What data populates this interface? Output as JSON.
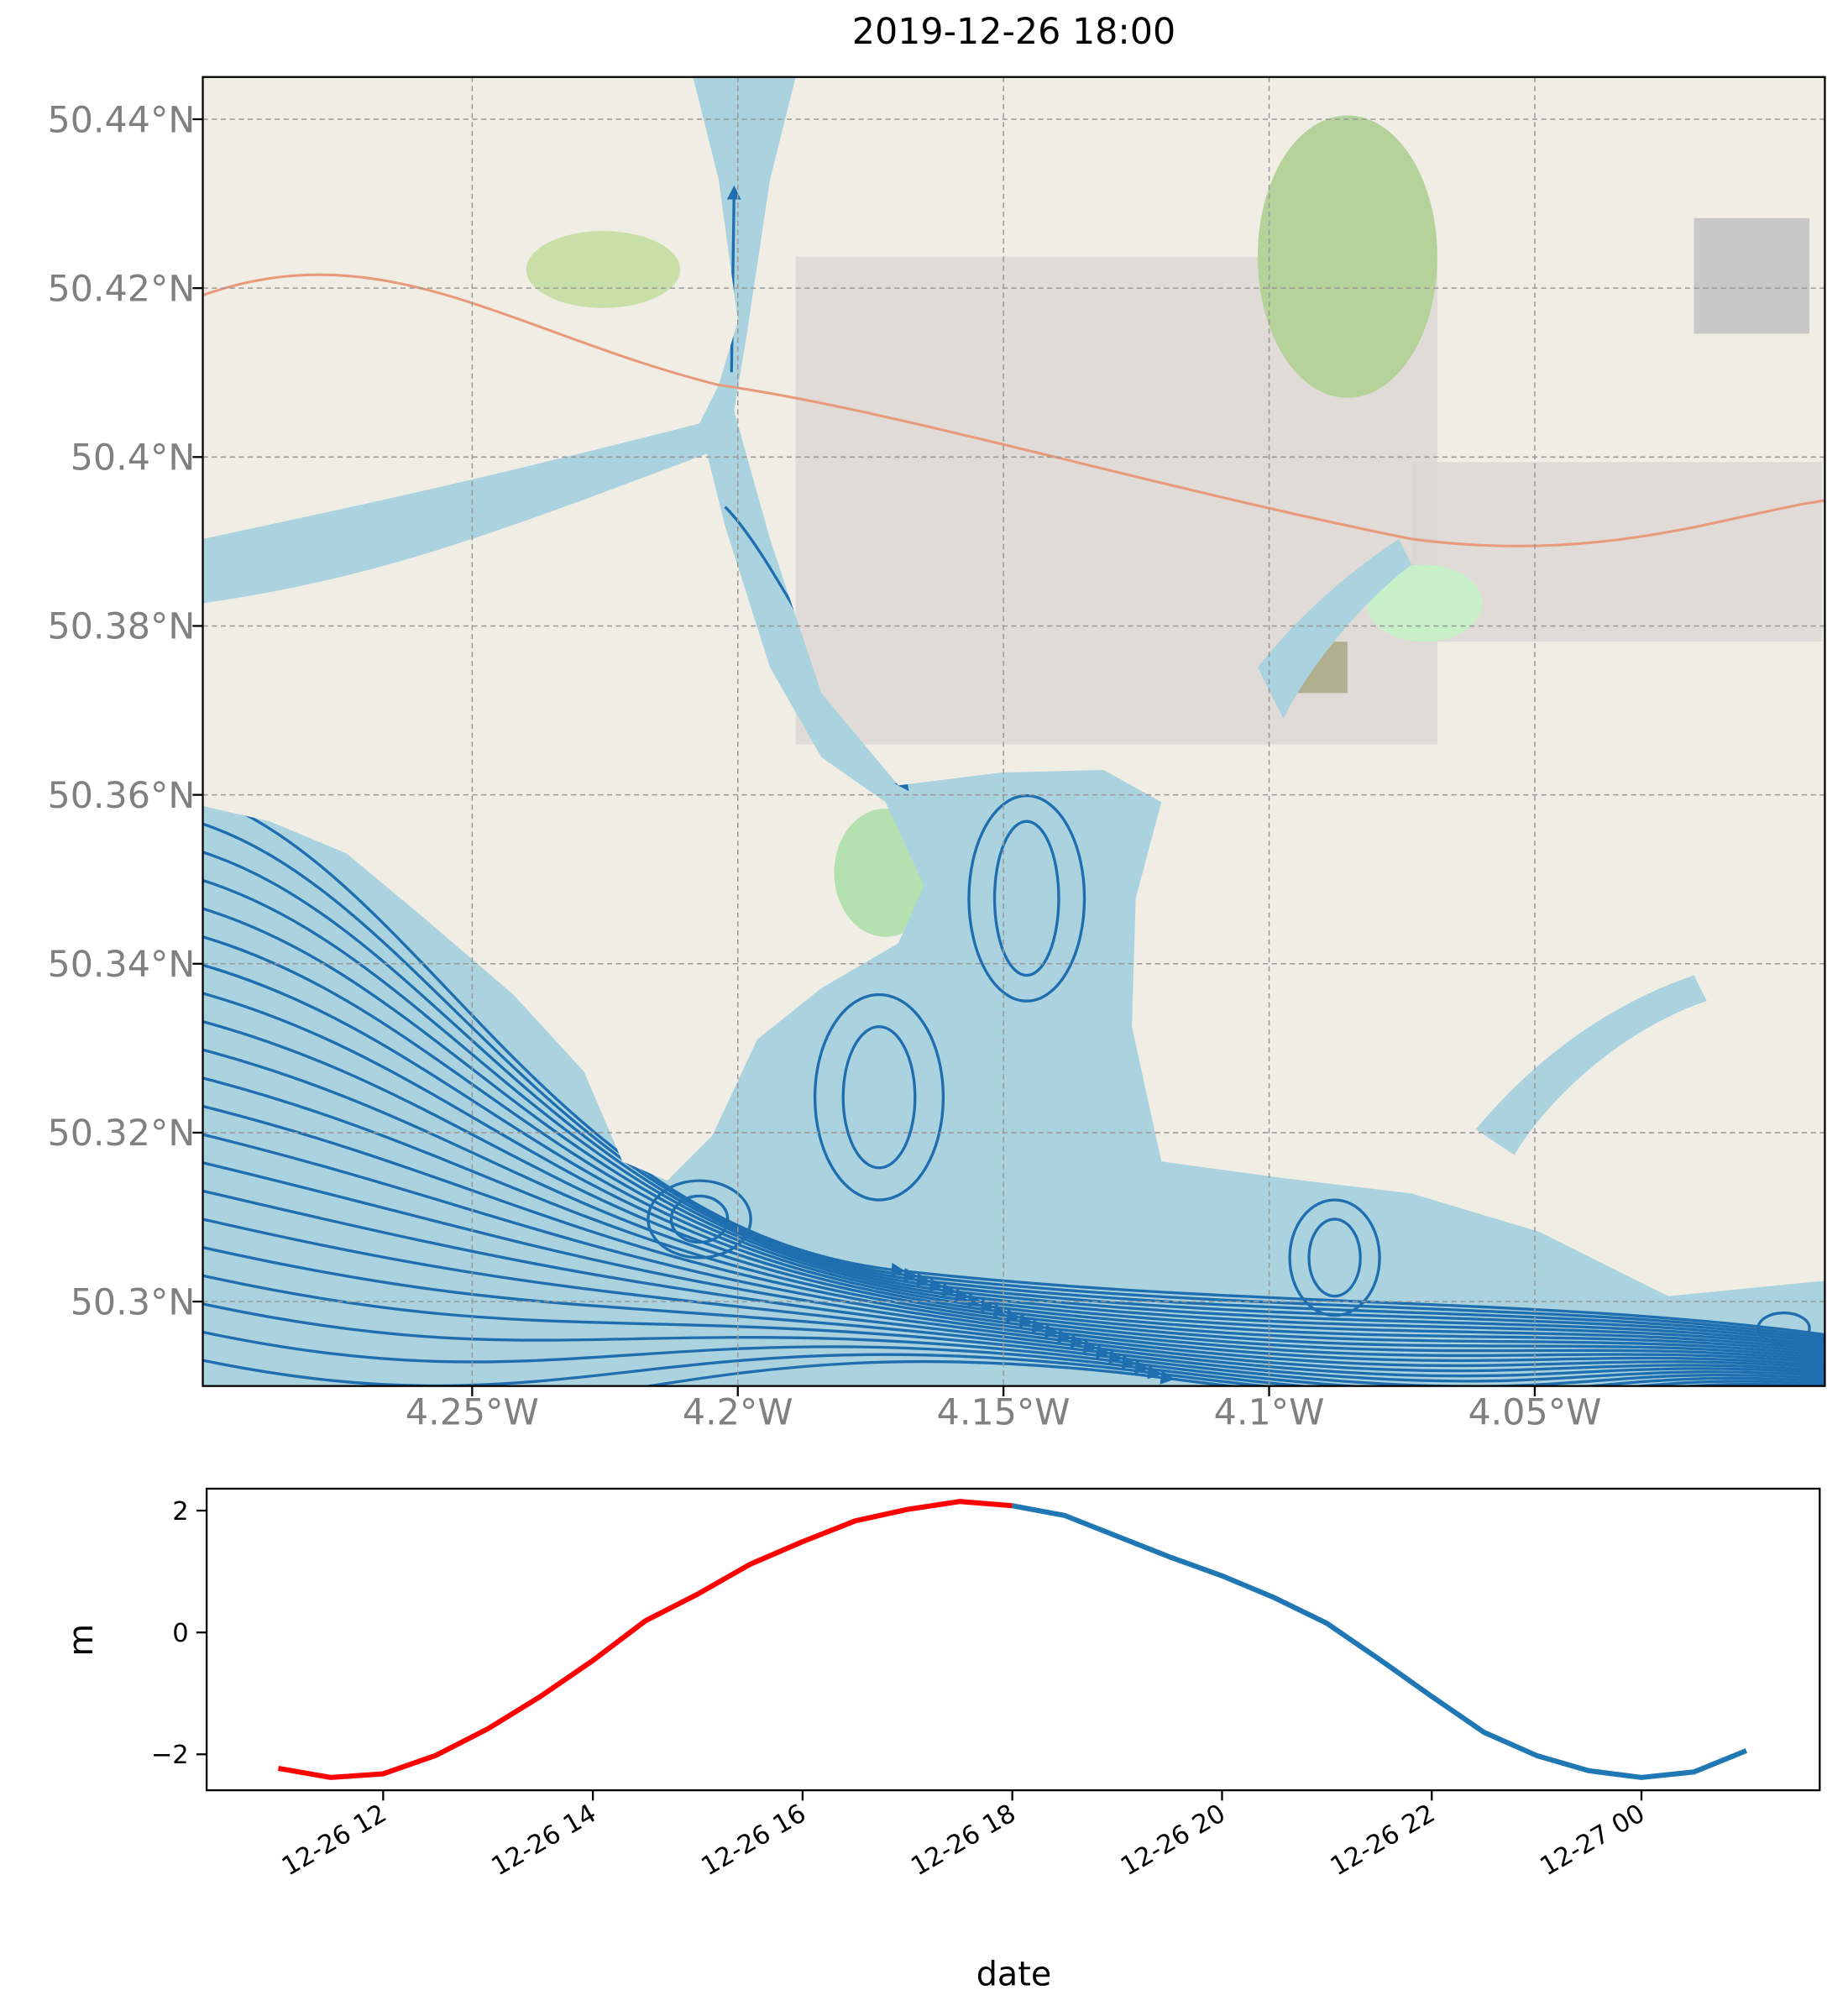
{
  "chart_data": [
    {
      "type": "map",
      "title": "2019-12-26 18:00",
      "xlim": [
        -4.3007,
        -3.9954
      ],
      "ylim": [
        50.29,
        50.445
      ],
      "xticks": [
        {
          "value": -4.25,
          "label": "4.25°W"
        },
        {
          "value": -4.2,
          "label": "4.2°W"
        },
        {
          "value": -4.15,
          "label": "4.15°W"
        },
        {
          "value": -4.1,
          "label": "4.1°W"
        },
        {
          "value": -4.05,
          "label": "4.05°W"
        }
      ],
      "yticks": [
        {
          "value": 50.3,
          "label": "50.3°N"
        },
        {
          "value": 50.32,
          "label": "50.32°N"
        },
        {
          "value": 50.34,
          "label": "50.34°N"
        },
        {
          "value": 50.36,
          "label": "50.36°N"
        },
        {
          "value": 50.38,
          "label": "50.38°N"
        },
        {
          "value": 50.4,
          "label": "50.4°N"
        },
        {
          "value": 50.42,
          "label": "50.42°N"
        },
        {
          "value": 50.44,
          "label": "50.44°N"
        }
      ],
      "grid": true
    },
    {
      "type": "line",
      "ylabel": "m",
      "xlabel": "date",
      "xlim": [
        "12-26 10:19",
        "12-27 01:42"
      ],
      "ylim": [
        -2.59,
        2.36
      ],
      "xticks": [
        {
          "value": "12-26 12:00",
          "label": "12-26 12"
        },
        {
          "value": "12-26 14:00",
          "label": "12-26 14"
        },
        {
          "value": "12-26 16:00",
          "label": "12-26 16"
        },
        {
          "value": "12-26 18:00",
          "label": "12-26 18"
        },
        {
          "value": "12-26 20:00",
          "label": "12-26 20"
        },
        {
          "value": "12-26 22:00",
          "label": "12-26 22"
        },
        {
          "value": "12-27 00:00",
          "label": "12-27 00"
        }
      ],
      "yticks": [
        {
          "value": -2,
          "label": "−2"
        },
        0,
        2
      ],
      "series": [
        {
          "color": "#ff0000",
          "x": [
            "12-26 11:00",
            "12-26 11:30",
            "12-26 12:00",
            "12-26 12:30",
            "12-26 13:00",
            "12-26 13:30",
            "12-26 14:00",
            "12-26 14:30",
            "12-26 15:00",
            "12-26 15:30",
            "12-26 16:00",
            "12-26 16:30",
            "12-26 17:00",
            "12-26 17:30",
            "12-26 18:00"
          ],
          "values": [
            -2.23,
            -2.38,
            -2.32,
            -2.02,
            -1.58,
            -1.05,
            -0.46,
            0.19,
            0.63,
            1.12,
            1.49,
            1.83,
            2.02,
            2.15,
            2.08
          ]
        },
        {
          "color": "#1f77b4",
          "x": [
            "12-26 18:00",
            "12-26 18:30",
            "12-26 19:00",
            "12-26 19:30",
            "12-26 20:00",
            "12-26 20:30",
            "12-26 21:00",
            "12-26 21:30",
            "12-26 22:00",
            "12-26 22:30",
            "12-26 23:00",
            "12-26 23:30",
            "12-27 00:00",
            "12-27 00:30",
            "12-27 01:00"
          ],
          "values": [
            2.08,
            1.92,
            1.58,
            1.24,
            0.93,
            0.57,
            0.15,
            -0.44,
            -1.05,
            -1.64,
            -2.02,
            -2.27,
            -2.38,
            -2.29,
            -1.94
          ]
        }
      ]
    }
  ]
}
